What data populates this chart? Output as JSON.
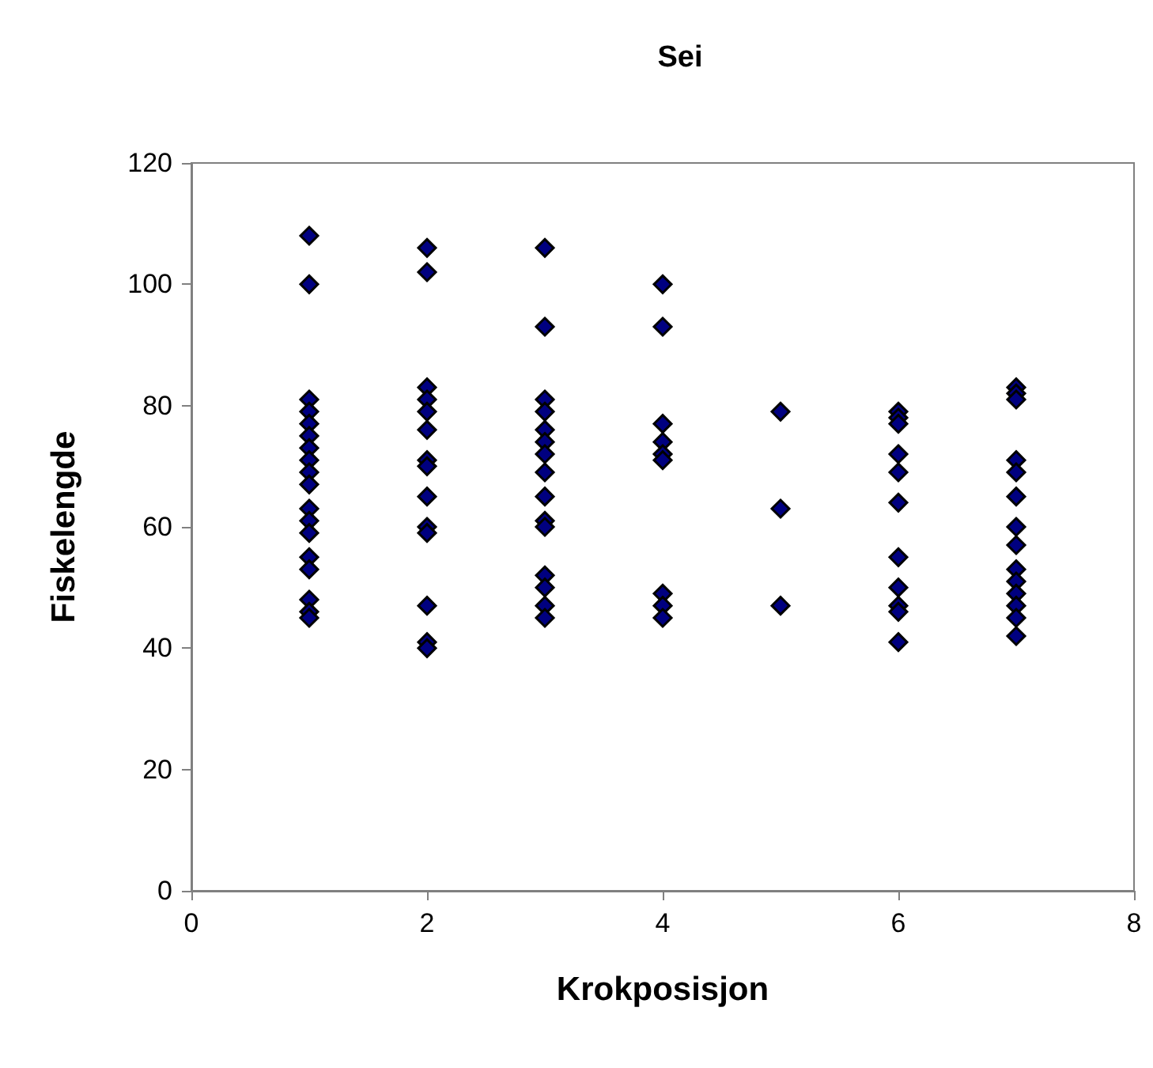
{
  "chart_data": {
    "type": "scatter",
    "title": "Sei",
    "xlabel": "Krokposisjon",
    "ylabel": "Fiskelengde",
    "marker": "diamond",
    "grid": false,
    "x": [
      1,
      1,
      1,
      1,
      1,
      1,
      1,
      1,
      1,
      1,
      1,
      1,
      1,
      1,
      1,
      1,
      1,
      1,
      2,
      2,
      2,
      2,
      2,
      2,
      2,
      2,
      2,
      2,
      2,
      2,
      2,
      2,
      3,
      3,
      3,
      3,
      3,
      3,
      3,
      3,
      3,
      3,
      3,
      3,
      3,
      3,
      3,
      4,
      4,
      4,
      4,
      4,
      4,
      4,
      4,
      4,
      5,
      5,
      5,
      6,
      6,
      6,
      6,
      6,
      6,
      6,
      6,
      6,
      6,
      6,
      7,
      7,
      7,
      7,
      7,
      7,
      7,
      7,
      7,
      7,
      7,
      7,
      7,
      7
    ],
    "series": [
      {
        "color": "#000080",
        "values": [
          108,
          100,
          81,
          79,
          77,
          75,
          73,
          71,
          69,
          67,
          63,
          61,
          59,
          55,
          53,
          48,
          46,
          45,
          106,
          102,
          83,
          81,
          79,
          76,
          71,
          70,
          65,
          60,
          59,
          47,
          41,
          40,
          106,
          93,
          81,
          79,
          76,
          74,
          72,
          69,
          65,
          61,
          60,
          52,
          50,
          47,
          45,
          100,
          93,
          77,
          74,
          72,
          71,
          49,
          47,
          45,
          79,
          63,
          47,
          79,
          78,
          77,
          72,
          69,
          64,
          55,
          50,
          47,
          46,
          41,
          83,
          82,
          81,
          71,
          69,
          65,
          60,
          57,
          53,
          51,
          49,
          47,
          45,
          42
        ]
      }
    ],
    "xlim": [
      0,
      8
    ],
    "xticks": [
      0,
      2,
      4,
      6,
      8
    ],
    "ylim": [
      0,
      120
    ],
    "yticks": [
      0,
      20,
      40,
      60,
      80,
      100,
      120
    ]
  }
}
